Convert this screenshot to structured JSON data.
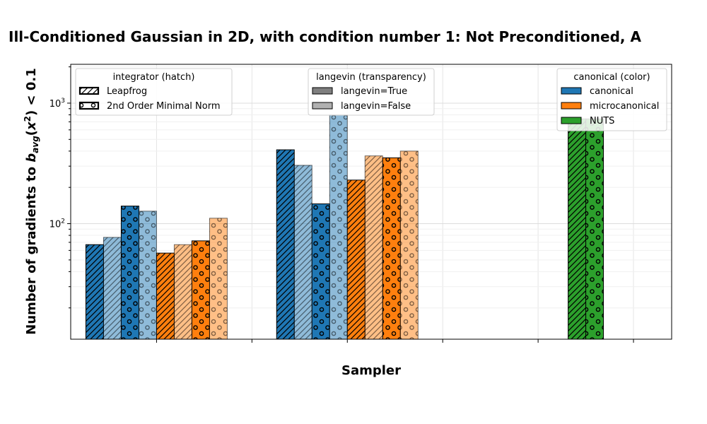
{
  "chart_data": {
    "type": "bar",
    "title": "Ill-Conditioned Gaussian in 2D, with condition number 1: Not Preconditioned, A",
    "xlabel": "Sampler",
    "ylabel": "Number of gradients to b_avg(x^2) < 0.1",
    "yscale": "log",
    "ylim": [
      11,
      2100
    ],
    "ytick_labels": [
      "10^2",
      "10^3"
    ],
    "grid": true,
    "groups": [
      {
        "x": 0.5,
        "bars": [
          {
            "canonical": "canonical",
            "integrator": "Leapfrog",
            "langevin": "True",
            "value": 67
          },
          {
            "canonical": "canonical",
            "integrator": "Leapfrog",
            "langevin": "False",
            "value": 77
          },
          {
            "canonical": "canonical",
            "integrator": "2nd Order Minimal Norm",
            "langevin": "True",
            "value": 140
          },
          {
            "canonical": "canonical",
            "integrator": "2nd Order Minimal Norm",
            "langevin": "False",
            "value": 127
          },
          {
            "canonical": "microcanonical",
            "integrator": "Leapfrog",
            "langevin": "True",
            "value": 57
          },
          {
            "canonical": "microcanonical",
            "integrator": "Leapfrog",
            "langevin": "False",
            "value": 67
          },
          {
            "canonical": "microcanonical",
            "integrator": "2nd Order Minimal Norm",
            "langevin": "True",
            "value": 72
          },
          {
            "canonical": "microcanonical",
            "integrator": "2nd Order Minimal Norm",
            "langevin": "False",
            "value": 111
          }
        ]
      },
      {
        "x": 2.5,
        "bars": [
          {
            "canonical": "canonical",
            "integrator": "Leapfrog",
            "langevin": "True",
            "value": 410
          },
          {
            "canonical": "canonical",
            "integrator": "Leapfrog",
            "langevin": "False",
            "value": 305
          },
          {
            "canonical": "canonical",
            "integrator": "2nd Order Minimal Norm",
            "langevin": "True",
            "value": 146
          },
          {
            "canonical": "canonical",
            "integrator": "2nd Order Minimal Norm",
            "langevin": "False",
            "value": 800
          },
          {
            "canonical": "microcanonical",
            "integrator": "Leapfrog",
            "langevin": "True",
            "value": 230
          },
          {
            "canonical": "microcanonical",
            "integrator": "Leapfrog",
            "langevin": "False",
            "value": 365
          },
          {
            "canonical": "microcanonical",
            "integrator": "2nd Order Minimal Norm",
            "langevin": "True",
            "value": 352
          },
          {
            "canonical": "microcanonical",
            "integrator": "2nd Order Minimal Norm",
            "langevin": "False",
            "value": 400
          }
        ]
      },
      {
        "x": 5.0,
        "bars": [
          {
            "canonical": "NUTS",
            "integrator": "Leapfrog",
            "langevin": "True",
            "value": 740
          },
          {
            "canonical": "NUTS",
            "integrator": "2nd Order Minimal Norm",
            "langevin": "True",
            "value": 740
          }
        ]
      }
    ],
    "legends": [
      {
        "title": "integrator (hatch)",
        "placement": "top-left",
        "entries": [
          "Leapfrog",
          "2nd Order Minimal Norm"
        ]
      },
      {
        "title": "langevin (transparency)",
        "placement": "top-center",
        "entries": [
          "langevin=True",
          "langevin=False"
        ]
      },
      {
        "title": "canonical (color)",
        "placement": "top-right",
        "entries": [
          "canonical",
          "microcanonical",
          "NUTS"
        ]
      }
    ],
    "colors": {
      "canonical": "#1f77b4",
      "microcanonical": "#ff7f0e",
      "NUTS": "#2ca02c"
    }
  }
}
